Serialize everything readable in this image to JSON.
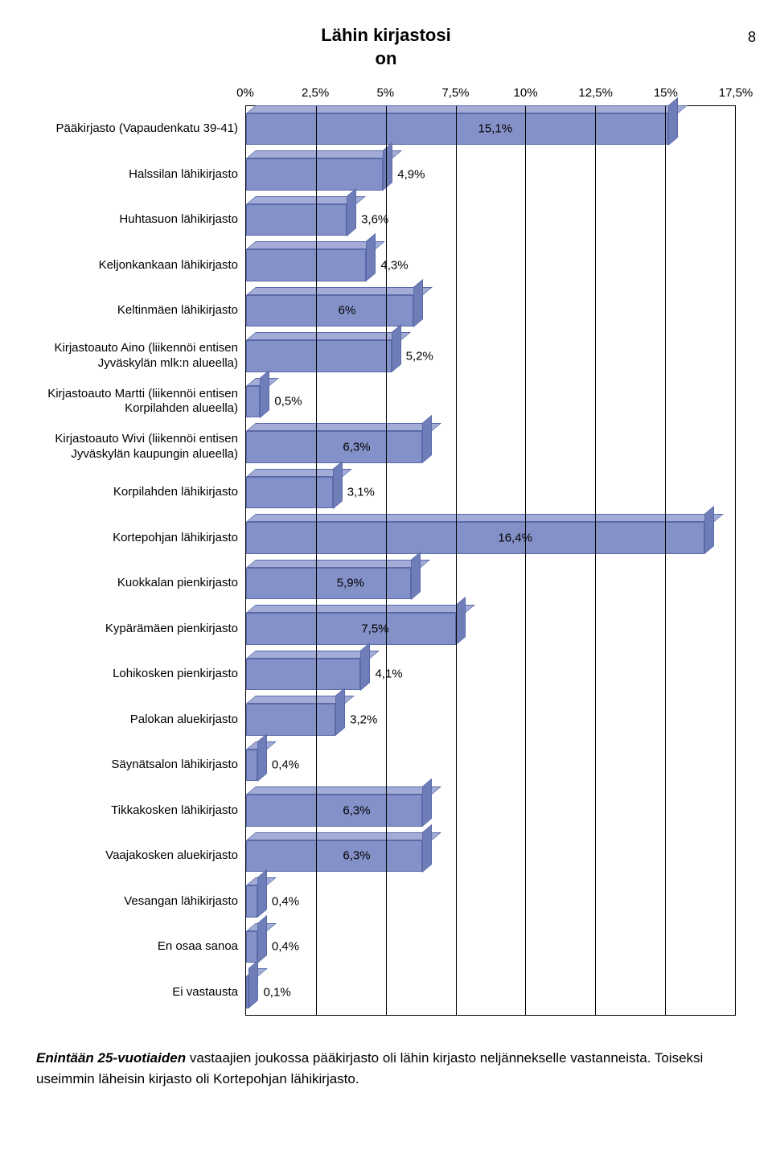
{
  "page_number": "8",
  "chart": {
    "type": "bar-horizontal",
    "title_line1": "Lähin kirjastosi",
    "title_line2": "on",
    "x_axis": {
      "min": 0,
      "max": 17.5,
      "ticks": [
        0,
        2.5,
        5,
        7.5,
        10,
        12.5,
        15,
        17.5
      ],
      "tick_labels": [
        "0%",
        "2,5%",
        "5%",
        "7,5%",
        "10%",
        "12,5%",
        "15%",
        "17,5%"
      ]
    },
    "bar_color_front": "#8491c8",
    "bar_color_top": "#a2acd6",
    "bar_color_side": "#6f7eb8",
    "bar_border": "#5a6aa8",
    "grid_color": "#000000",
    "background_color": "#ffffff",
    "label_fontsize": 15,
    "title_fontsize": 22,
    "categories": [
      {
        "label": "Pääkirjasto (Vapaudenkatu 39-41)",
        "value": 15.1,
        "value_label": "15,1%"
      },
      {
        "label": "Halssilan lähikirjasto",
        "value": 4.9,
        "value_label": "4,9%"
      },
      {
        "label": "Huhtasuon lähikirjasto",
        "value": 3.6,
        "value_label": "3,6%"
      },
      {
        "label": "Keljonkankaan lähikirjasto",
        "value": 4.3,
        "value_label": "4,3%"
      },
      {
        "label": "Keltinmäen lähikirjasto",
        "value": 6.0,
        "value_label": "6%"
      },
      {
        "label": "Kirjastoauto Aino (liikennöi entisen Jyväskylän mlk:n alueella)",
        "value": 5.2,
        "value_label": "5,2%"
      },
      {
        "label": "Kirjastoauto Martti (liikennöi entisen Korpilahden alueella)",
        "value": 0.5,
        "value_label": "0,5%"
      },
      {
        "label": "Kirjastoauto Wivi (liikennöi entisen Jyväskylän kaupungin alueella)",
        "value": 6.3,
        "value_label": "6,3%"
      },
      {
        "label": "Korpilahden lähikirjasto",
        "value": 3.1,
        "value_label": "3,1%"
      },
      {
        "label": "Kortepohjan lähikirjasto",
        "value": 16.4,
        "value_label": "16,4%"
      },
      {
        "label": "Kuokkalan pienkirjasto",
        "value": 5.9,
        "value_label": "5,9%"
      },
      {
        "label": "Kypärämäen pienkirjasto",
        "value": 7.5,
        "value_label": "7,5%"
      },
      {
        "label": "Lohikosken pienkirjasto",
        "value": 4.1,
        "value_label": "4,1%"
      },
      {
        "label": "Palokan aluekirjasto",
        "value": 3.2,
        "value_label": "3,2%"
      },
      {
        "label": "Säynätsalon  lähikirjasto",
        "value": 0.4,
        "value_label": "0,4%"
      },
      {
        "label": "Tikkakosken lähikirjasto",
        "value": 6.3,
        "value_label": "6,3%"
      },
      {
        "label": "Vaajakosken aluekirjasto",
        "value": 6.3,
        "value_label": "6,3%"
      },
      {
        "label": "Vesangan lähikirjasto",
        "value": 0.4,
        "value_label": "0,4%"
      },
      {
        "label": "En osaa sanoa",
        "value": 0.4,
        "value_label": "0,4%"
      },
      {
        "label": "Ei vastausta",
        "value": 0.1,
        "value_label": "0,1%"
      }
    ]
  },
  "footer": {
    "bold_prefix": "Enintään 25-vuotiaiden",
    "rest": " vastaajien joukossa pääkirjasto oli lähin kirjasto neljännekselle vastanneista. Toiseksi useimmin läheisin kirjasto oli Kortepohjan lähikirjasto."
  }
}
